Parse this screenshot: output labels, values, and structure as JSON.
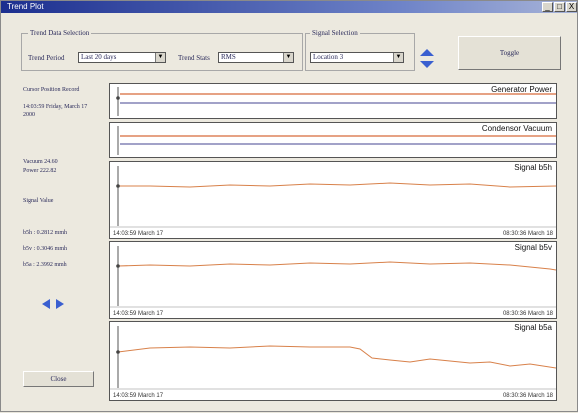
{
  "window": {
    "title": "Trend Plot",
    "minimize": "_",
    "maximize": "□",
    "close": "X"
  },
  "trend_data": {
    "group_title": "Trend Data Selection",
    "period_label": "Trend Period",
    "period_value": "Last 20 days",
    "stats_label": "Trend Stats",
    "stats_value": "RMS"
  },
  "signal_selection": {
    "group_title": "Signal Selection",
    "value": "Location 3"
  },
  "toggle_label": "Toggle",
  "sidebar": {
    "cursor_heading": "Cursor Position Record",
    "cursor_time": "14:03:59 Friday, March 17 2000",
    "vacuum": "Vacuum 24.60",
    "power": "Power 222.82",
    "signal_value_label": "Signal Value",
    "b5h": "b5h : 0.2812 mmh",
    "b5v": "b5v : 0.3046 mmh",
    "b5a": "b5a : 2.3992 mmh"
  },
  "close_label": "Close",
  "colors": {
    "trace": "#d8814a",
    "blue_line": "#6a6aa8",
    "orange_line": "#d86a3a"
  },
  "panels": [
    {
      "title": "Generator Power"
    },
    {
      "title": "Condensor Vacuum"
    },
    {
      "title": "Signal  b5h",
      "start": "14:03:59 March 17",
      "end": "08:30:36 March 18"
    },
    {
      "title": "Signal  b5v",
      "start": "14:03:59 March 17",
      "end": "08:30:36 March 18"
    },
    {
      "title": "Signal  b5a",
      "start": "14:03:59 March 17",
      "end": "08:30:36 March 18"
    }
  ]
}
